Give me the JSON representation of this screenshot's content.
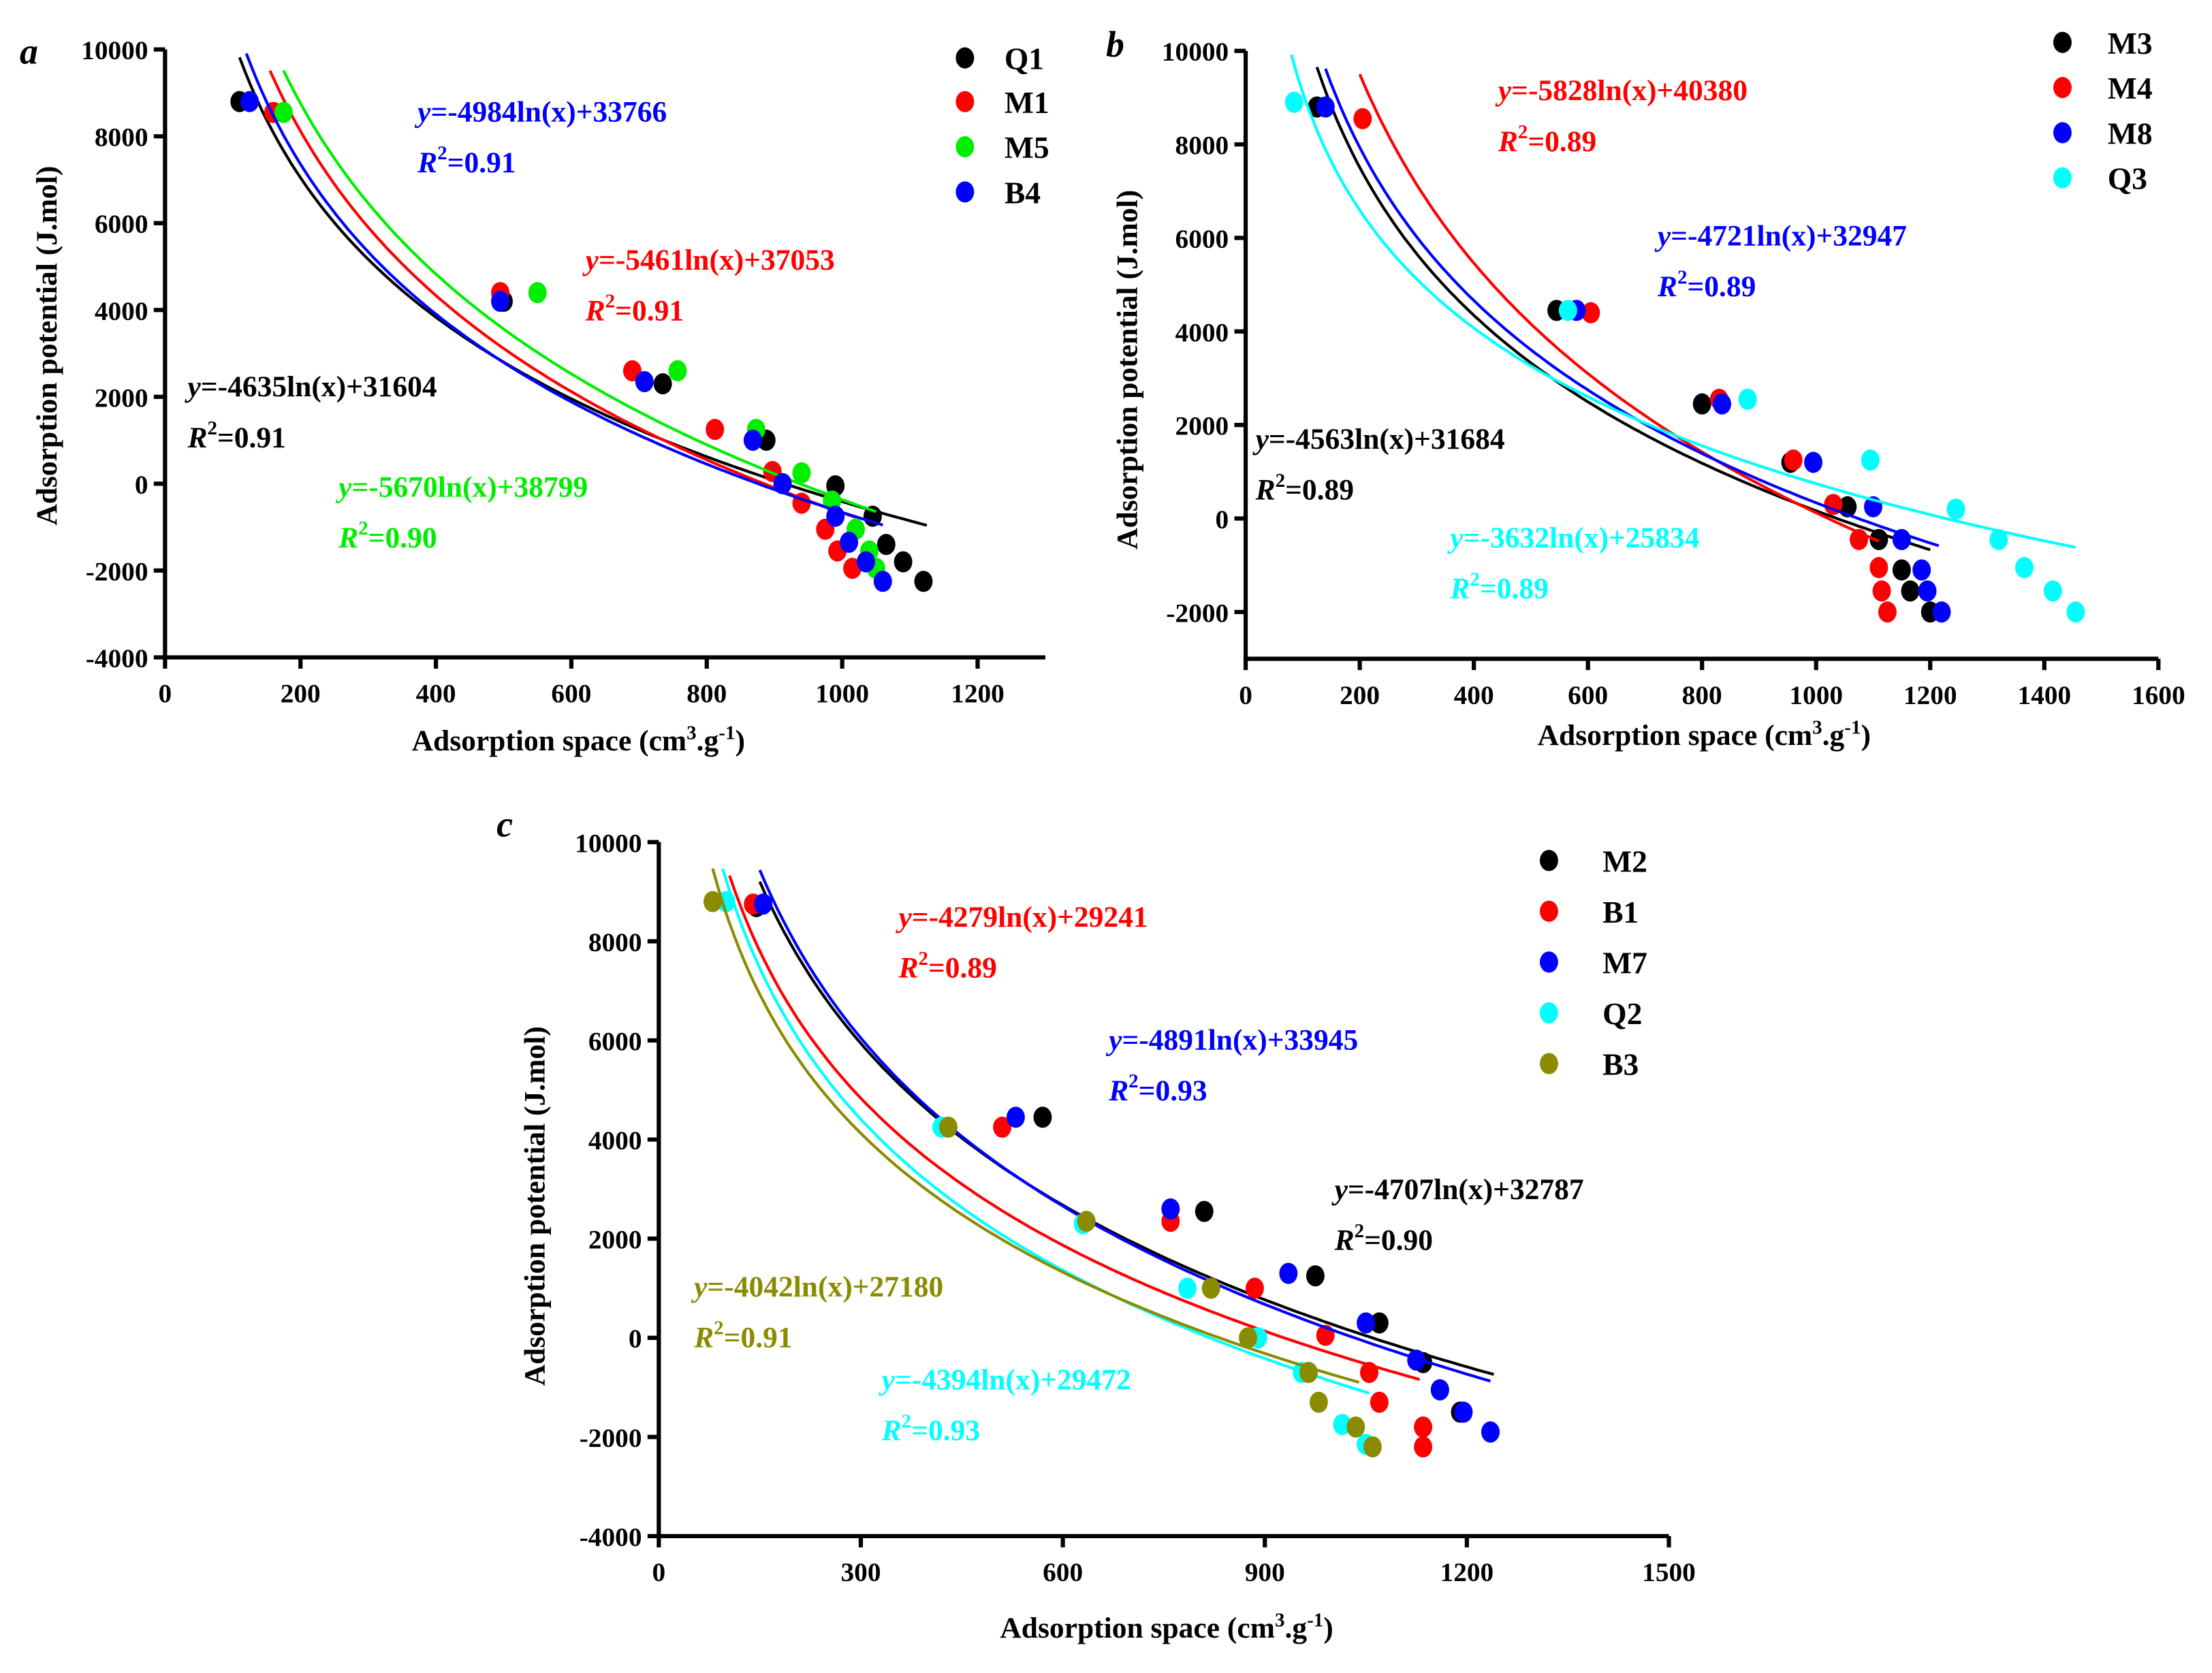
{
  "chart_data": [
    {
      "type": "scatter",
      "panel_label": "a",
      "xlabel": "Adsorption space (cm3.g-1)",
      "xlabel_parts": [
        "Adsorption space (cm",
        "3",
        ".g",
        "-1",
        ")"
      ],
      "ylabel": "Adsorption potential (J.mol)",
      "xlim": [
        0,
        1300
      ],
      "ylim": [
        -4000,
        10000
      ],
      "xticks": [
        0,
        200,
        400,
        600,
        800,
        1000,
        1200
      ],
      "yticks": [
        -4000,
        -2000,
        0,
        2000,
        4000,
        6000,
        8000,
        10000
      ],
      "legend_position": "top-right",
      "series": [
        {
          "name": "Q1",
          "color": "#000000",
          "fit": {
            "a": -4635,
            "b": 31604,
            "range": [
              110,
              1125
            ]
          },
          "equation": "=-4635ln(x)+31604",
          "r2": "=0.91",
          "x": [
            110,
            500,
            735,
            888,
            990,
            1045,
            1065,
            1090,
            1120
          ],
          "y": [
            8800,
            4200,
            2300,
            1000,
            -50,
            -750,
            -1400,
            -1800,
            -2250
          ]
        },
        {
          "name": "M1",
          "color": "#ff0000",
          "fit": {
            "a": -5461,
            "b": 37053,
            "range": [
              155,
              1020
            ]
          },
          "equation": "=-5461ln(x)+37053",
          "r2": "=0.91",
          "x": [
            160,
            495,
            690,
            812,
            897,
            940,
            975,
            993,
            1015
          ],
          "y": [
            8550,
            4400,
            2600,
            1250,
            280,
            -450,
            -1050,
            -1550,
            -1950
          ]
        },
        {
          "name": "M5",
          "color": "#00ee00",
          "fit": {
            "a": -5670,
            "b": 38799,
            "range": [
              175,
              1050
            ]
          },
          "equation": "=-5670ln(x)+38799",
          "r2": "=0.90",
          "x": [
            175,
            550,
            757,
            873,
            940,
            985,
            1020,
            1040,
            1050
          ],
          "y": [
            8550,
            4400,
            2600,
            1250,
            250,
            -400,
            -1050,
            -1550,
            -1950
          ]
        },
        {
          "name": "B4",
          "color": "#0000ff",
          "fit": {
            "a": -4984,
            "b": 33766,
            "range": [
              120,
              1060
            ]
          },
          "equation": "=-4984ln(x)+33766",
          "r2": "=0.91",
          "x": [
            125,
            495,
            708,
            868,
            912,
            990,
            1010,
            1035,
            1060
          ],
          "y": [
            8800,
            4200,
            2350,
            1000,
            0,
            -750,
            -1350,
            -1800,
            -2250
          ]
        }
      ]
    },
    {
      "type": "scatter",
      "panel_label": "b",
      "xlabel": "Adsorption space (cm3.g-1)",
      "xlabel_parts": [
        "Adsorption space (cm",
        "3",
        ".g",
        "-1",
        ")"
      ],
      "ylabel": "Adsorption potential (J.mol)",
      "xlim": [
        0,
        1600
      ],
      "ylim": [
        -3000,
        10000
      ],
      "xticks": [
        0,
        200,
        400,
        600,
        800,
        1000,
        1200,
        1400,
        1600
      ],
      "yticks": [
        -2000,
        0,
        2000,
        4000,
        6000,
        8000,
        10000
      ],
      "legend_position": "top-right",
      "series": [
        {
          "name": "M3",
          "color": "#000000",
          "fit": {
            "a": -4563,
            "b": 31684,
            "range": [
              125,
              1200
            ]
          },
          "equation": "=-4563ln(x)+31684",
          "r2": "=0.89",
          "x": [
            125,
            545,
            800,
            955,
            1055,
            1110,
            1150,
            1165,
            1200
          ],
          "y": [
            8800,
            4450,
            2450,
            1200,
            250,
            -450,
            -1100,
            -1550,
            -2000
          ]
        },
        {
          "name": "M4",
          "color": "#ff0000",
          "fit": {
            "a": -5828,
            "b": 40380,
            "range": [
              200,
              1110
            ]
          },
          "equation": "=-5828ln(x)+40380",
          "r2": "=0.89",
          "x": [
            205,
            605,
            830,
            960,
            1030,
            1075,
            1110,
            1115,
            1125
          ],
          "y": [
            8550,
            4400,
            2550,
            1250,
            300,
            -450,
            -1050,
            -1550,
            -2000
          ]
        },
        {
          "name": "M8",
          "color": "#0000ff",
          "fit": {
            "a": -4721,
            "b": 32947,
            "range": [
              140,
              1215
            ]
          },
          "equation": "=-4721ln(x)+32947",
          "r2": "=0.89",
          "x": [
            140,
            580,
            835,
            995,
            1100,
            1150,
            1185,
            1195,
            1220
          ],
          "y": [
            8800,
            4450,
            2450,
            1200,
            250,
            -450,
            -1100,
            -1550,
            -2000
          ]
        },
        {
          "name": "Q3",
          "color": "#00ffff",
          "fit": {
            "a": -3632,
            "b": 25834,
            "range": [
              80,
              1455
            ]
          },
          "equation": "=-3632ln(x)+25834",
          "r2": "=0.89",
          "x": [
            85,
            565,
            880,
            1095,
            1245,
            1320,
            1365,
            1415,
            1455
          ],
          "y": [
            8900,
            4450,
            2550,
            1250,
            200,
            -450,
            -1050,
            -1550,
            -2000
          ]
        }
      ]
    },
    {
      "type": "scatter",
      "panel_label": "c",
      "xlabel": "Adsorption space (cm3.g-1)",
      "xlabel_parts": [
        "Adsorption space (cm",
        "3",
        ".g",
        "-1",
        ")"
      ],
      "ylabel": "Adsorption potential (J.mol)",
      "xlim": [
        0,
        1500
      ],
      "ylim": [
        -4000,
        10000
      ],
      "xticks": [
        0,
        300,
        600,
        900,
        1200,
        1500
      ],
      "yticks": [
        -4000,
        -2000,
        0,
        2000,
        4000,
        6000,
        8000,
        10000
      ],
      "legend_position": "top-right",
      "series": [
        {
          "name": "M2",
          "color": "#000000",
          "fit": {
            "a": -4707,
            "b": 32787,
            "range": [
              150,
              1240
            ]
          },
          "equation": "=-4707ln(x)+32787",
          "r2": "=0.90",
          "x": [
            145,
            570,
            810,
            975,
            1070,
            1135,
            1160,
            1190,
            1235
          ],
          "y": [
            8700,
            4450,
            2550,
            1250,
            300,
            -500,
            -1050,
            -1500,
            -1900
          ]
        },
        {
          "name": "B1",
          "color": "#ff0000",
          "fit": {
            "a": -4279,
            "b": 29241,
            "range": [
              105,
              1130
            ]
          },
          "equation": "=-4279ln(x)+29241",
          "r2": "=0.89",
          "x": [
            140,
            510,
            760,
            885,
            990,
            1055,
            1070,
            1135,
            1135
          ],
          "y": [
            8750,
            4250,
            2350,
            1000,
            50,
            -700,
            -1300,
            -1800,
            -2200
          ]
        },
        {
          "name": "M7",
          "color": "#0000ff",
          "fit": {
            "a": -4891,
            "b": 33945,
            "range": [
              150,
              1235
            ]
          },
          "equation": "=-4891ln(x)+33945",
          "r2": "=0.93",
          "x": [
            155,
            530,
            760,
            935,
            1050,
            1125,
            1160,
            1195,
            1235
          ],
          "y": [
            8750,
            4450,
            2600,
            1300,
            300,
            -450,
            -1050,
            -1500,
            -1900
          ]
        },
        {
          "name": "Q2",
          "color": "#00ffff",
          "fit": {
            "a": -4394,
            "b": 29472,
            "range": [
              95,
              1055
            ]
          },
          "equation": "=-4394ln(x)+29472",
          "r2": "=0.93",
          "x": [
            100,
            420,
            630,
            785,
            890,
            955,
            1015,
            1050
          ],
          "y": [
            8800,
            4250,
            2300,
            1000,
            0,
            -700,
            -1750,
            -2150
          ]
        },
        {
          "name": "B3",
          "color": "#8b8b00",
          "fit": {
            "a": -4042,
            "b": 27180,
            "range": [
              80,
              1040
            ]
          },
          "equation": "=-4042ln(x)+27180",
          "r2": "=0.91",
          "x": [
            80,
            430,
            635,
            820,
            875,
            965,
            980,
            1035,
            1060
          ],
          "y": [
            8800,
            4250,
            2350,
            1000,
            0,
            -700,
            -1300,
            -1800,
            -2200
          ]
        }
      ]
    }
  ]
}
